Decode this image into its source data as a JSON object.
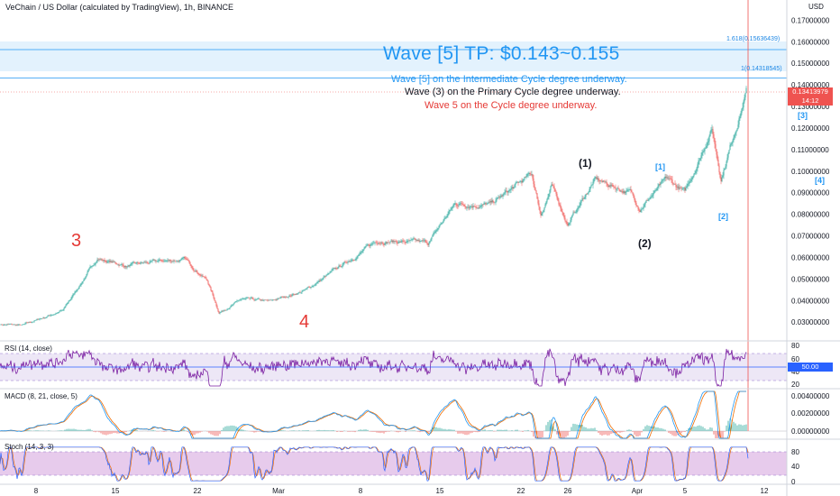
{
  "header": {
    "title": "VeChain / US Dollar (calculated by TradingView), 1h, BINANCE"
  },
  "price_axis": {
    "unit": "USD",
    "ticks": [
      "0.17000000",
      "0.16000000",
      "0.15000000",
      "0.14000000",
      "0.13000000",
      "0.12000000",
      "0.11000000",
      "0.10000000",
      "0.09000000",
      "0.08000000",
      "0.07000000",
      "0.06000000",
      "0.05000000",
      "0.04000000",
      "0.03000000"
    ],
    "current_price": "0.13413979",
    "countdown": "14:12"
  },
  "fib_levels": [
    {
      "label": "1.618(0.15636439)",
      "value": 0.15636439
    },
    {
      "label": "1(0.14318545)",
      "value": 0.14318545
    }
  ],
  "annotations": {
    "tp_title": "Wave [5] TP: $0.143~0.155",
    "line1": "Wave [5] on the Intermediate Cycle degree underway.",
    "line2": "Wave (3) on the Primary Cycle degree underway.",
    "line3": "Wave 5 on the Cycle degree underway.",
    "colors": {
      "blue": "#2196f3",
      "black": "#131722",
      "red": "#e53935"
    }
  },
  "wave_labels": [
    {
      "text": "3",
      "color": "#e53935",
      "x_index": 85,
      "price": 0.0675
    },
    {
      "text": "4",
      "color": "#e53935",
      "x_index": 338,
      "price": 0.0295
    },
    {
      "text": "(1)",
      "color": "#131722",
      "x_index": 650,
      "price": 0.1035
    },
    {
      "text": "(2)",
      "color": "#131722",
      "x_index": 716,
      "price": 0.0665
    },
    {
      "text": "[1]",
      "color": "#2196f3",
      "x_index": 735,
      "price": 0.101
    },
    {
      "text": "[2]",
      "color": "#2196f3",
      "x_index": 805,
      "price": 0.078
    },
    {
      "text": "[3]",
      "color": "#2196f3",
      "x_index": 893,
      "price": 0.125
    },
    {
      "text": "[4]",
      "color": "#2196f3",
      "x_index": 912,
      "price": 0.095
    }
  ],
  "indicators": {
    "rsi": {
      "label": "RSI (14, close)",
      "ticks": [
        "80",
        "60",
        "40",
        "20"
      ],
      "value": "50.00"
    },
    "macd": {
      "label": "MACD (8, 21, close, 5)",
      "ticks": [
        "0.00400000",
        "0.00200000",
        "0.00000000"
      ]
    },
    "stoch": {
      "label": "Stoch (14, 3, 3)",
      "ticks": [
        "80",
        "40",
        "0"
      ]
    }
  },
  "time_axis": {
    "labels": [
      "8",
      "15",
      "22",
      "Mar",
      "8",
      "15",
      "22",
      "26",
      "Apr",
      "5",
      "12"
    ]
  },
  "chart_data": {
    "type": "candlestick",
    "title": "VeChain / US Dollar (calculated by TradingView), 1h, BINANCE",
    "ylabel": "USD",
    "ylim": [
      0.0255,
      0.1735
    ],
    "pivots": [
      {
        "i": 0,
        "p": 0.029
      },
      {
        "i": 25,
        "p": 0.0285
      },
      {
        "i": 70,
        "p": 0.0355
      },
      {
        "i": 108,
        "p": 0.0595
      },
      {
        "i": 140,
        "p": 0.056
      },
      {
        "i": 175,
        "p": 0.058
      },
      {
        "i": 205,
        "p": 0.059
      },
      {
        "i": 230,
        "p": 0.0495
      },
      {
        "i": 243,
        "p": 0.0345
      },
      {
        "i": 268,
        "p": 0.0405
      },
      {
        "i": 300,
        "p": 0.0395
      },
      {
        "i": 340,
        "p": 0.045
      },
      {
        "i": 420,
        "p": 0.068
      },
      {
        "i": 475,
        "p": 0.0665
      },
      {
        "i": 505,
        "p": 0.085
      },
      {
        "i": 545,
        "p": 0.0845
      },
      {
        "i": 590,
        "p": 0.0985
      },
      {
        "i": 600,
        "p": 0.08
      },
      {
        "i": 612,
        "p": 0.093
      },
      {
        "i": 630,
        "p": 0.0755
      },
      {
        "i": 660,
        "p": 0.096
      },
      {
        "i": 700,
        "p": 0.09
      },
      {
        "i": 710,
        "p": 0.083
      },
      {
        "i": 740,
        "p": 0.096
      },
      {
        "i": 760,
        "p": 0.09
      },
      {
        "i": 790,
        "p": 0.12
      },
      {
        "i": 800,
        "p": 0.097
      },
      {
        "i": 828,
        "p": 0.137
      }
    ]
  }
}
